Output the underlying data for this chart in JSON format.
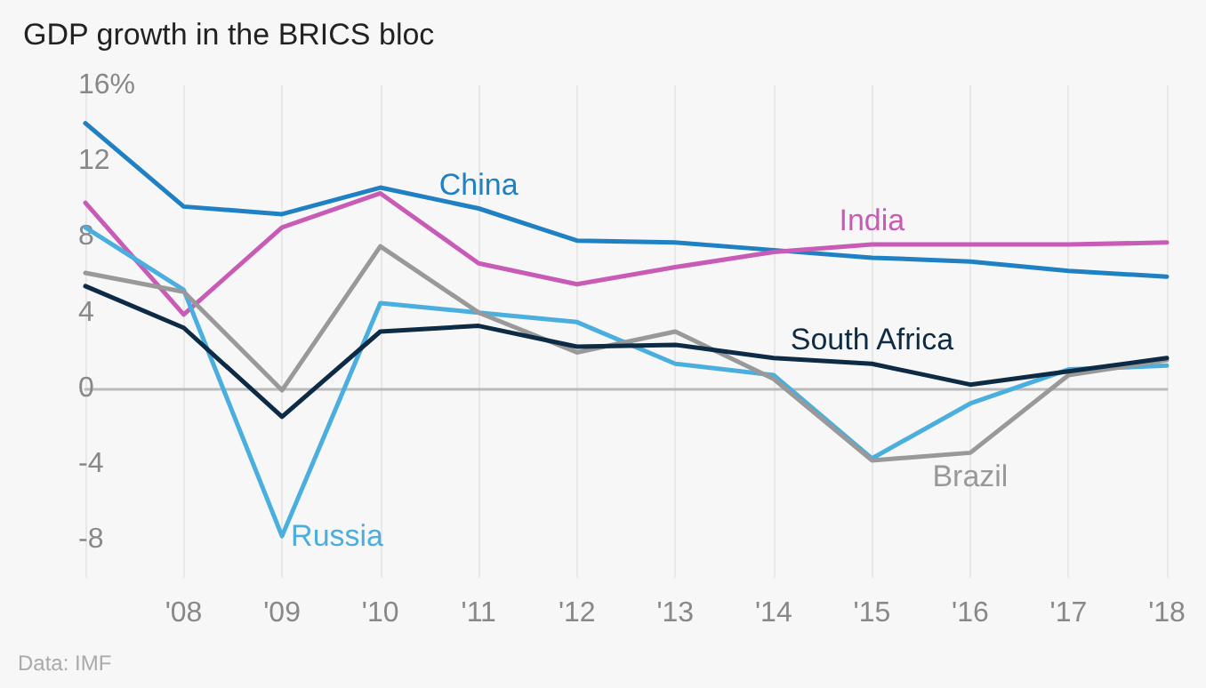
{
  "chart_data": {
    "type": "line",
    "title": "GDP growth in the BRICS bloc",
    "annotations": [
      "Data: IMF"
    ],
    "categories": [
      null,
      "'08",
      "'09",
      "'10",
      "'11",
      "'12",
      "'13",
      "'14",
      "'15",
      "'16",
      "'17",
      "'18"
    ],
    "series": [
      {
        "name": "China",
        "color": "#1f80c4",
        "values": [
          14.0,
          9.6,
          9.2,
          10.6,
          9.5,
          7.8,
          7.7,
          7.3,
          6.9,
          6.7,
          6.2,
          5.9
        ]
      },
      {
        "name": "India",
        "color": "#c85bb5",
        "values": [
          9.8,
          3.9,
          8.5,
          10.3,
          6.6,
          5.5,
          6.4,
          7.2,
          7.6,
          7.6,
          7.6,
          7.7
        ]
      },
      {
        "name": "Russia",
        "color": "#4aaede",
        "values": [
          8.5,
          5.2,
          -7.8,
          4.5,
          4.0,
          3.5,
          1.3,
          0.7,
          -3.7,
          -0.8,
          1.0,
          1.2
        ]
      },
      {
        "name": "Brazil",
        "color": "#999999",
        "values": [
          6.1,
          5.1,
          -0.1,
          7.5,
          4.0,
          1.9,
          3.0,
          0.5,
          -3.8,
          -3.4,
          0.7,
          1.5
        ]
      },
      {
        "name": "South Africa",
        "color": "#0d2b45",
        "values": [
          5.4,
          3.2,
          -1.5,
          3.0,
          3.3,
          2.2,
          2.3,
          1.6,
          1.3,
          0.2,
          0.9,
          1.6
        ]
      }
    ],
    "ylim": [
      -10,
      16
    ],
    "yticks": [
      -8,
      -4,
      0,
      4,
      8,
      12,
      {
        "value": 16,
        "label": "16%"
      }
    ],
    "grid": "x",
    "legend": false,
    "marker": "none",
    "line_style": "solid"
  }
}
